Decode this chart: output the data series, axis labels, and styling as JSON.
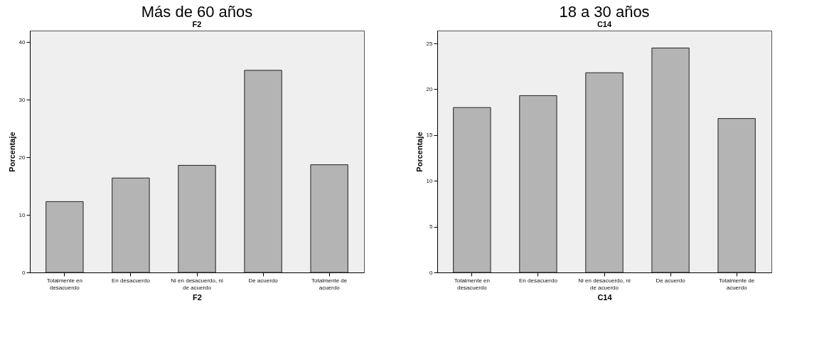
{
  "chart_data": [
    {
      "type": "bar",
      "title": "Más de 60 años",
      "subtitle": "F2",
      "xlabel": "F2",
      "ylabel": "Porcentaje",
      "categories": [
        "Totalmente en desacuerdo",
        "En desacuerdo",
        "Ni en desacuerdo, ni de acuerdo",
        "De acuerdo",
        "Totalmente de acuerdo"
      ],
      "values": [
        12.3,
        16.4,
        18.6,
        35.1,
        18.7
      ],
      "color": "#b4b4b4",
      "ylim": [
        0,
        42
      ],
      "yticks": [
        0,
        10,
        20,
        30,
        40
      ],
      "grid": false
    },
    {
      "type": "bar",
      "title": "18 a 30 años",
      "subtitle": "C14",
      "xlabel": "C14",
      "ylabel": "Porcentaje",
      "categories": [
        "Totalmente en desacuerdo",
        "En desacuerdo",
        "Ni en desacuerdo, ni de acuerdo",
        "De acuerdo",
        "Totalmente de acuerdo"
      ],
      "values": [
        18.0,
        19.3,
        21.8,
        24.5,
        16.8
      ],
      "color": "#b4b4b4",
      "ylim": [
        0,
        26.4
      ],
      "yticks": [
        0,
        5,
        10,
        15,
        20,
        25
      ],
      "grid": false
    }
  ]
}
